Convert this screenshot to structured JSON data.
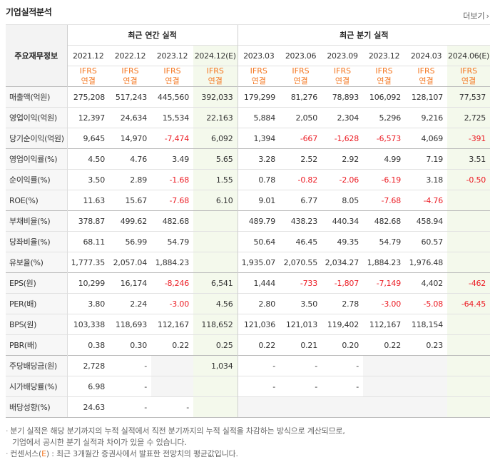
{
  "header": {
    "title": "기업실적분석",
    "more_label": "더보기",
    "more_icon": "chevron-right-icon"
  },
  "table": {
    "corner_label": "주요재무정보",
    "group_annual": "최근 연간 실적",
    "group_quarter": "최근 분기 실적",
    "periods": [
      "2021.12",
      "2022.12",
      "2023.12",
      "2024.12(E)",
      "2023.03",
      "2023.06",
      "2023.09",
      "2023.12",
      "2024.03",
      "2024.06(E)"
    ],
    "ifrs_top": "IFRS",
    "ifrs_bottom": "연결",
    "rows": [
      {
        "label": "매출액(억원)",
        "values": [
          "275,208",
          "517,243",
          "445,560",
          "392,033",
          "179,299",
          "81,276",
          "78,893",
          "106,092",
          "128,107",
          "77,537"
        ]
      },
      {
        "label": "영업이익(억원)",
        "values": [
          "12,397",
          "24,634",
          "15,534",
          "22,163",
          "5,884",
          "2,050",
          "2,304",
          "5,296",
          "9,216",
          "2,725"
        ]
      },
      {
        "label": "당기순이익(억원)",
        "values": [
          "9,645",
          "14,970",
          "-7,474",
          "6,092",
          "1,394",
          "-667",
          "-1,628",
          "-6,573",
          "4,069",
          "-391"
        ]
      },
      {
        "label": "영업이익률(%)",
        "values": [
          "4.50",
          "4.76",
          "3.49",
          "5.65",
          "3.28",
          "2.52",
          "2.92",
          "4.99",
          "7.19",
          "3.51"
        ]
      },
      {
        "label": "순이익률(%)",
        "values": [
          "3.50",
          "2.89",
          "-1.68",
          "1.55",
          "0.78",
          "-0.82",
          "-2.06",
          "-6.19",
          "3.18",
          "-0.50"
        ]
      },
      {
        "label": "ROE(%)",
        "values": [
          "11.63",
          "15.67",
          "-7.68",
          "6.10",
          "9.01",
          "6.77",
          "8.05",
          "-7.68",
          "-4.76",
          ""
        ]
      },
      {
        "label": "부채비율(%)",
        "values": [
          "378.87",
          "499.62",
          "482.68",
          "",
          "489.79",
          "438.23",
          "440.34",
          "482.68",
          "458.94",
          ""
        ]
      },
      {
        "label": "당좌비율(%)",
        "values": [
          "68.11",
          "56.99",
          "54.79",
          "",
          "50.64",
          "46.45",
          "49.35",
          "54.79",
          "60.57",
          ""
        ]
      },
      {
        "label": "유보율(%)",
        "values": [
          "1,777.35",
          "2,057.04",
          "1,884.23",
          "",
          "1,935.07",
          "2,070.55",
          "2,034.27",
          "1,884.23",
          "1,976.48",
          ""
        ]
      },
      {
        "label": "EPS(원)",
        "values": [
          "10,299",
          "16,174",
          "-8,246",
          "6,541",
          "1,444",
          "-733",
          "-1,807",
          "-7,149",
          "4,402",
          "-462"
        ]
      },
      {
        "label": "PER(배)",
        "values": [
          "3.80",
          "2.24",
          "-3.00",
          "4.56",
          "2.80",
          "3.50",
          "2.78",
          "-3.00",
          "-5.08",
          "-64.45"
        ]
      },
      {
        "label": "BPS(원)",
        "values": [
          "103,338",
          "118,693",
          "112,167",
          "118,652",
          "121,036",
          "121,013",
          "119,402",
          "112,167",
          "118,154",
          ""
        ]
      },
      {
        "label": "PBR(배)",
        "values": [
          "0.38",
          "0.30",
          "0.22",
          "0.25",
          "0.22",
          "0.21",
          "0.20",
          "0.22",
          "0.23",
          ""
        ]
      },
      {
        "label": "주당배당금(원)",
        "values": [
          "2,728",
          "-",
          "",
          "1,034",
          "-",
          "-",
          "-",
          "",
          "",
          ""
        ]
      },
      {
        "label": "시가배당률(%)",
        "values": [
          "6.98",
          "-",
          "",
          "",
          "-",
          "-",
          "-",
          "",
          "",
          ""
        ]
      },
      {
        "label": "배당성향(%)",
        "values": [
          "24.63",
          "-",
          "-",
          "",
          "",
          "",
          "",
          "",
          "",
          ""
        ]
      }
    ]
  },
  "notes": {
    "line1": "분기 실적은 해당 분기까지의 누적 실적에서 직전 분기까지의 누적 실적을 차감하는 방식으로 계산되므로,",
    "line2": "기업에서 공시한 분기 실적과 차이가 있을 수 있습니다.",
    "line3_prefix": "컨센서스(",
    "line3_mark": "E",
    "line3_suffix": ") : 최근 3개월간 증권사에서 발표한 전망치의 평균값입니다."
  },
  "colors": {
    "negative": "#ec1c24",
    "ifrs": "#f47721",
    "estimate_bg": "#f4f9ec"
  }
}
